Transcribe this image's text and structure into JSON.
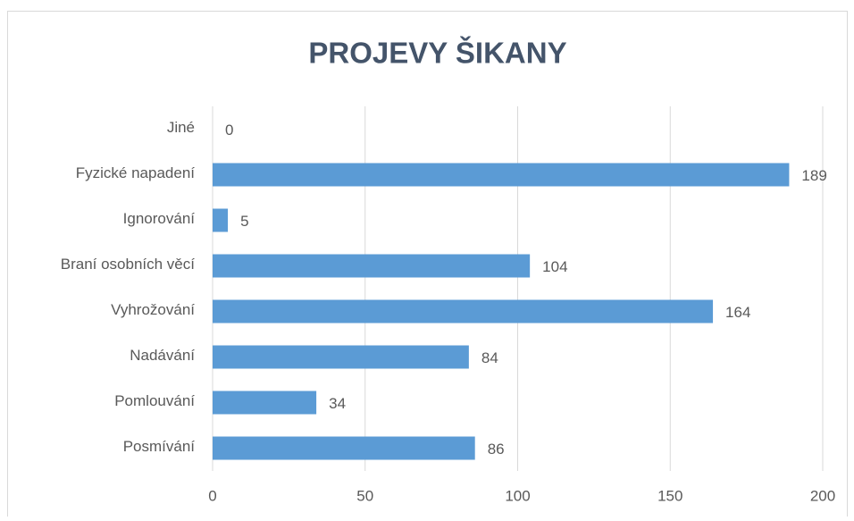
{
  "chart_data": {
    "type": "barh",
    "title": "PROJEVY ŠIKANY",
    "categories": [
      "Jiné",
      "Fyzické napadení",
      "Ignorování",
      "Braní osobních věcí",
      "Vyhrožování",
      "Nadávání",
      "Pomlouvání",
      "Posmívání"
    ],
    "values": [
      0,
      189,
      5,
      104,
      164,
      84,
      34,
      86
    ],
    "color": "#5b9bd5",
    "xlim": [
      0,
      200
    ],
    "xticks": [
      0,
      50,
      100,
      150,
      200
    ],
    "grid": true
  }
}
